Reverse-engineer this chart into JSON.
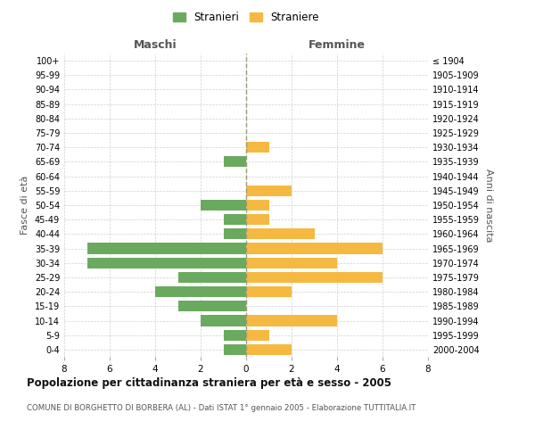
{
  "age_groups": [
    "0-4",
    "5-9",
    "10-14",
    "15-19",
    "20-24",
    "25-29",
    "30-34",
    "35-39",
    "40-44",
    "45-49",
    "50-54",
    "55-59",
    "60-64",
    "65-69",
    "70-74",
    "75-79",
    "80-84",
    "85-89",
    "90-94",
    "95-99",
    "100+"
  ],
  "birth_years": [
    "2000-2004",
    "1995-1999",
    "1990-1994",
    "1985-1989",
    "1980-1984",
    "1975-1979",
    "1970-1974",
    "1965-1969",
    "1960-1964",
    "1955-1959",
    "1950-1954",
    "1945-1949",
    "1940-1944",
    "1935-1939",
    "1930-1934",
    "1925-1929",
    "1920-1924",
    "1915-1919",
    "1910-1914",
    "1905-1909",
    "≤ 1904"
  ],
  "males": [
    1,
    1,
    2,
    3,
    4,
    3,
    7,
    7,
    1,
    1,
    2,
    0,
    0,
    1,
    0,
    0,
    0,
    0,
    0,
    0,
    0
  ],
  "females": [
    2,
    1,
    4,
    0,
    2,
    6,
    4,
    6,
    3,
    1,
    1,
    2,
    0,
    0,
    1,
    0,
    0,
    0,
    0,
    0,
    0
  ],
  "male_color": "#6aaa5e",
  "female_color": "#f5b942",
  "background_color": "#ffffff",
  "grid_color": "#cccccc",
  "title": "Popolazione per cittadinanza straniera per età e sesso - 2005",
  "subtitle": "COMUNE DI BORGHETTO DI BORBERA (AL) - Dati ISTAT 1° gennaio 2005 - Elaborazione TUTTITALIA.IT",
  "ylabel_left": "Fasce di età",
  "ylabel_right": "Anni di nascita",
  "xlabel_left": "Maschi",
  "xlabel_right": "Femmine",
  "legend_male": "Stranieri",
  "legend_female": "Straniere",
  "xlim": 8
}
